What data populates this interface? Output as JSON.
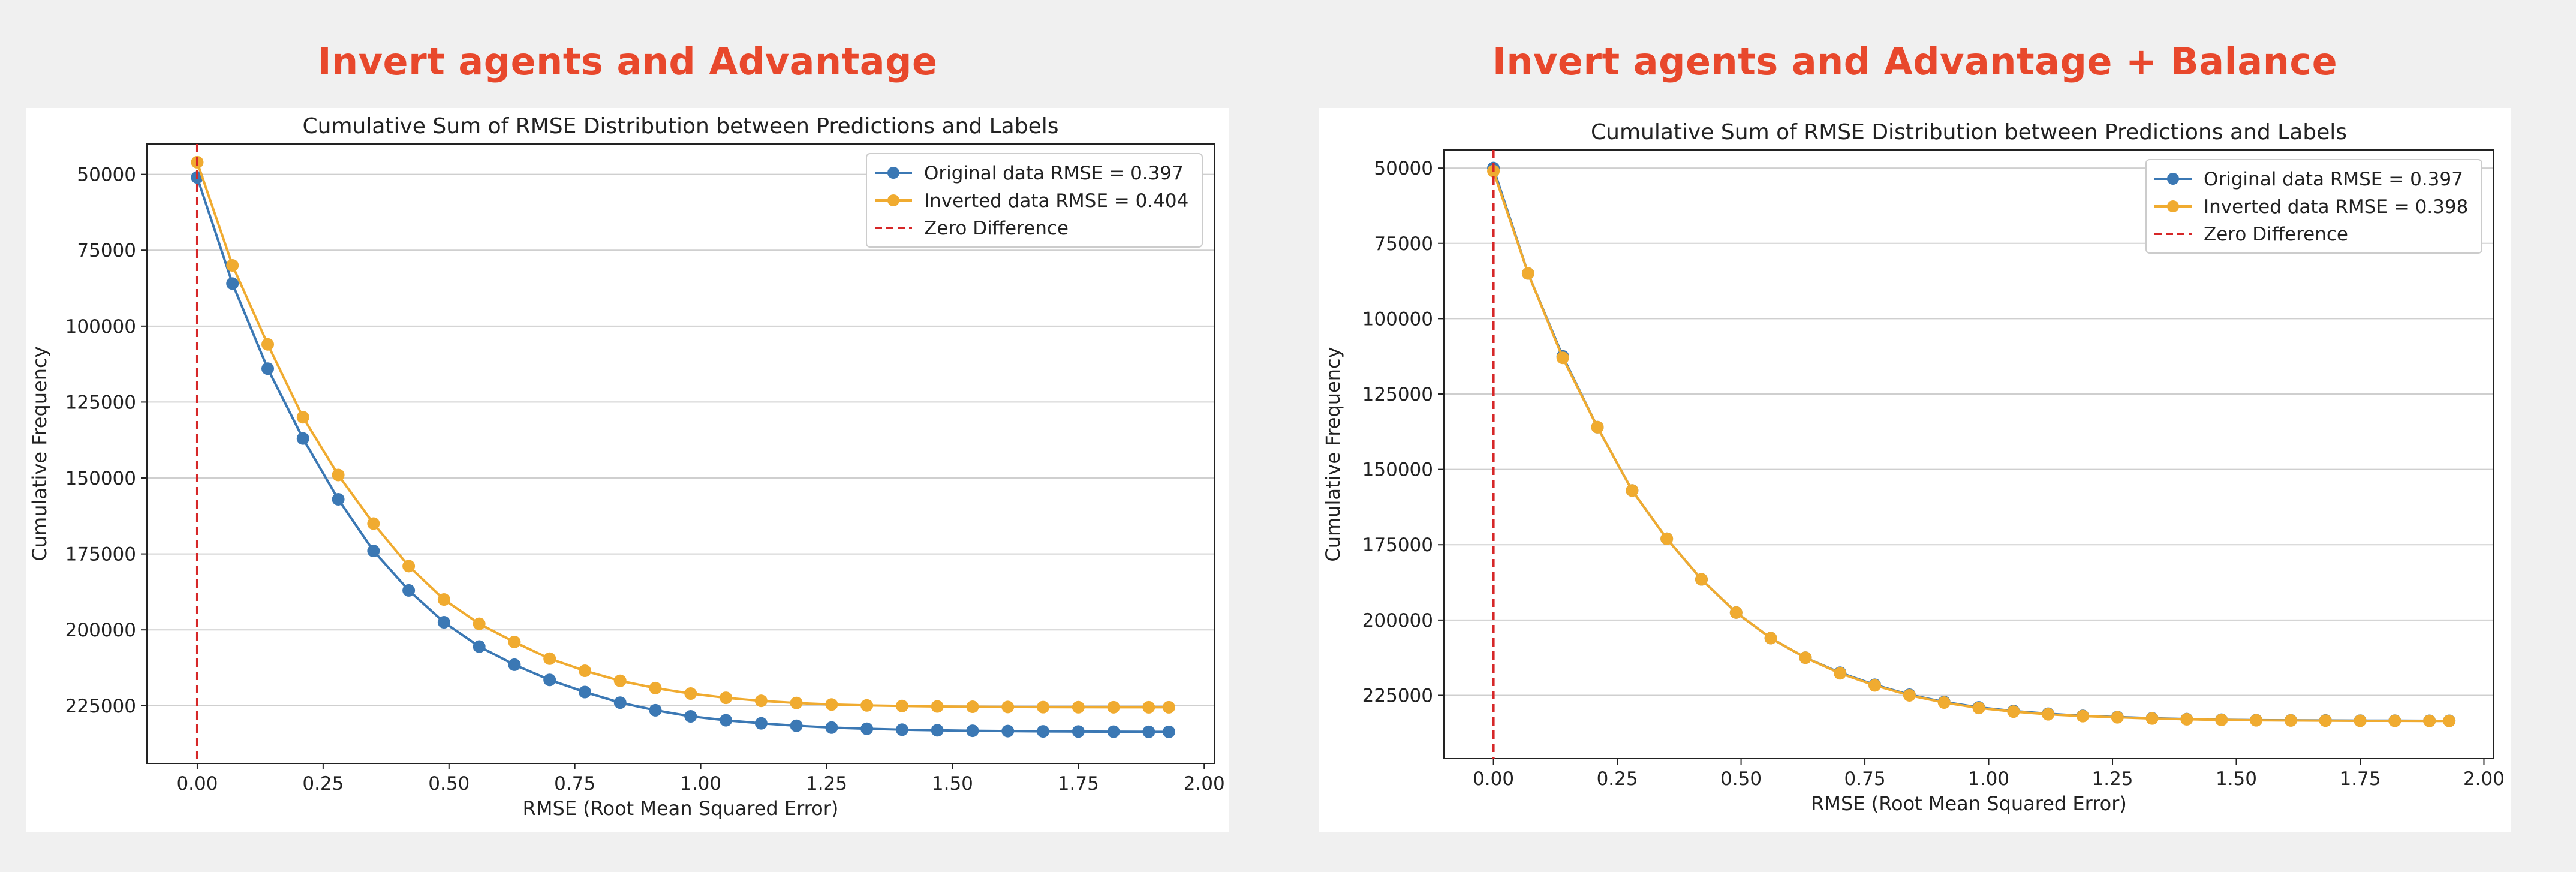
{
  "panels": [
    {
      "heading": "Invert agents and Advantage"
    },
    {
      "heading": "Invert agents and Advantage + Balance"
    }
  ],
  "chart_data": [
    {
      "type": "line",
      "title": "Cumulative Sum of RMSE Distribution between Predictions and Labels",
      "xlabel": "RMSE (Root Mean Squared Error)",
      "ylabel": "Cumulative Frequency",
      "y_inverted": true,
      "xlim": [
        -0.1,
        2.02
      ],
      "ylim": [
        40000,
        244000
      ],
      "xticks": [
        "0.00",
        "0.25",
        "0.50",
        "0.75",
        "1.00",
        "1.25",
        "1.50",
        "1.75",
        "2.00"
      ],
      "xtick_values": [
        0,
        0.25,
        0.5,
        0.75,
        1.0,
        1.25,
        1.5,
        1.75,
        2.0
      ],
      "yticks": [
        "50000",
        "75000",
        "100000",
        "125000",
        "150000",
        "175000",
        "200000",
        "225000"
      ],
      "ytick_values": [
        50000,
        75000,
        100000,
        125000,
        150000,
        175000,
        200000,
        225000
      ],
      "grid": "horizontal",
      "legend_position": "top-right",
      "x": [
        0.0,
        0.07,
        0.14,
        0.21,
        0.28,
        0.35,
        0.42,
        0.49,
        0.56,
        0.63,
        0.7,
        0.77,
        0.84,
        0.91,
        0.98,
        1.05,
        1.12,
        1.19,
        1.26,
        1.33,
        1.4,
        1.47,
        1.54,
        1.61,
        1.68,
        1.75,
        1.82,
        1.89,
        1.93
      ],
      "series": [
        {
          "name": "Original data RMSE = 0.397",
          "color": "#3b78b4",
          "values": [
            51000,
            86000,
            114000,
            137000,
            157000,
            174000,
            187000,
            197500,
            205500,
            211500,
            216500,
            220500,
            224000,
            226500,
            228500,
            229800,
            230800,
            231600,
            232200,
            232600,
            232900,
            233100,
            233250,
            233350,
            233450,
            233500,
            233550,
            233600,
            233600
          ]
        },
        {
          "name": "Inverted data RMSE = 0.404",
          "color": "#f0ab30",
          "values": [
            46000,
            80000,
            106000,
            130000,
            149000,
            165000,
            179000,
            190000,
            198000,
            204000,
            209500,
            213500,
            216800,
            219200,
            221000,
            222400,
            223400,
            224100,
            224600,
            224900,
            225100,
            225250,
            225350,
            225420,
            225460,
            225490,
            225500,
            225510,
            225510
          ]
        }
      ],
      "reference_line": {
        "name": "Zero Difference",
        "x": 0,
        "color": "#d62728"
      }
    },
    {
      "type": "line",
      "title": "Cumulative Sum of RMSE Distribution between Predictions and Labels",
      "xlabel": "RMSE (Root Mean Squared Error)",
      "ylabel": "Cumulative Frequency",
      "y_inverted": true,
      "xlim": [
        -0.1,
        2.02
      ],
      "ylim": [
        44000,
        246000
      ],
      "xticks": [
        "0.00",
        "0.25",
        "0.50",
        "0.75",
        "1.00",
        "1.25",
        "1.50",
        "1.75",
        "2.00"
      ],
      "xtick_values": [
        0,
        0.25,
        0.5,
        0.75,
        1.0,
        1.25,
        1.5,
        1.75,
        2.0
      ],
      "yticks": [
        "50000",
        "75000",
        "100000",
        "125000",
        "150000",
        "175000",
        "200000",
        "225000"
      ],
      "ytick_values": [
        50000,
        75000,
        100000,
        125000,
        150000,
        175000,
        200000,
        225000
      ],
      "grid": "horizontal",
      "legend_position": "top-right",
      "x": [
        0.0,
        0.07,
        0.14,
        0.21,
        0.28,
        0.35,
        0.42,
        0.49,
        0.56,
        0.63,
        0.7,
        0.77,
        0.84,
        0.91,
        0.98,
        1.05,
        1.12,
        1.19,
        1.26,
        1.33,
        1.4,
        1.47,
        1.54,
        1.61,
        1.68,
        1.75,
        1.82,
        1.89,
        1.93
      ],
      "series": [
        {
          "name": "Original data RMSE = 0.397",
          "color": "#3b78b4",
          "values": [
            50000,
            85000,
            112500,
            136000,
            157000,
            173000,
            186500,
            197500,
            206000,
            212500,
            217500,
            221500,
            224800,
            227200,
            229000,
            230200,
            231100,
            231800,
            232200,
            232600,
            232900,
            233100,
            233250,
            233300,
            233350,
            233400,
            233420,
            233450,
            233450
          ]
        },
        {
          "name": "Inverted data RMSE = 0.398",
          "color": "#f0ab30",
          "values": [
            51000,
            85000,
            113000,
            136000,
            157000,
            173000,
            186500,
            197500,
            206000,
            212500,
            217700,
            221700,
            225000,
            227400,
            229200,
            230400,
            231300,
            231900,
            232300,
            232700,
            232950,
            233150,
            233300,
            233350,
            233400,
            233450,
            233470,
            233500,
            233500
          ]
        }
      ],
      "reference_line": {
        "name": "Zero Difference",
        "x": 0,
        "color": "#d62728"
      }
    }
  ]
}
